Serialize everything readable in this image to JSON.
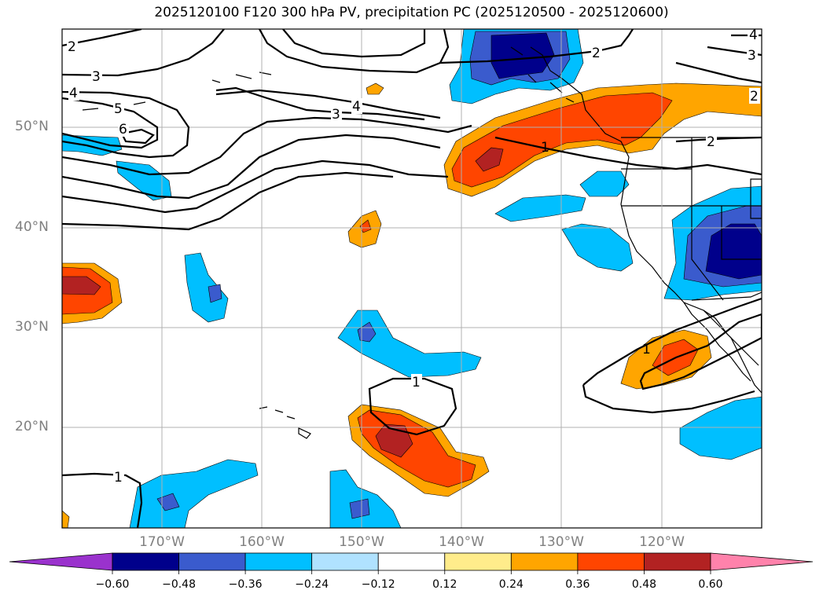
{
  "title": "2025120100 F120 300 hPa PV, precipitation PC (2025120500 - 2025120600)",
  "lat_labels": [
    "50°N",
    "40°N",
    "30°N",
    "20°N"
  ],
  "lon_labels": [
    "170°W",
    "160°W",
    "150°W",
    "140°W",
    "130°W",
    "120°W"
  ],
  "contour_labels": [
    "2",
    "3",
    "4",
    "5",
    "6",
    "4",
    "3",
    "2",
    "4",
    "3",
    "2",
    "2",
    "1",
    "1",
    "1",
    "1"
  ],
  "colorbar": {
    "ticks": [
      "−0.60",
      "−0.48",
      "−0.36",
      "−0.24",
      "−0.12",
      "0.12",
      "0.24",
      "0.36",
      "0.48",
      "0.60"
    ],
    "colors": [
      "#9a32cd",
      "#00008b",
      "#3a5bcd",
      "#00bfff",
      "#b0e2ff",
      "#ffffff",
      "#ffec8b",
      "#ffa500",
      "#ff4500",
      "#b22222",
      "#ff82ab"
    ]
  }
}
